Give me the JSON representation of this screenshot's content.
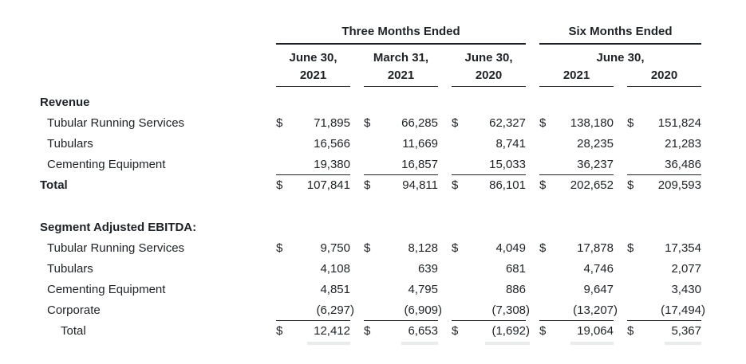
{
  "colors": {
    "background": "#ffffff",
    "text": "#1e2227",
    "rule": "#1e2227",
    "faint_total_rule": "#e9ebed"
  },
  "table": {
    "currency_symbol": "$",
    "header": {
      "groups": [
        {
          "title": "Three Months Ended",
          "columns": [
            {
              "date": "June 30,",
              "year": "2021"
            },
            {
              "date": "March 31,",
              "year": "2021"
            },
            {
              "date": "June 30,",
              "year": "2020"
            }
          ]
        },
        {
          "title": "Six Months Ended",
          "shared_date": "June 30,",
          "columns": [
            {
              "year": "2021"
            },
            {
              "year": "2020"
            }
          ]
        }
      ]
    },
    "sections": [
      {
        "heading": "Revenue",
        "rows": [
          {
            "label": "Tubular Running Services",
            "indent": 1,
            "bold": false,
            "dollar": true,
            "underline": false,
            "final": false,
            "values": [
              "71,895",
              "66,285",
              "62,327",
              "138,180",
              "151,824"
            ]
          },
          {
            "label": "Tubulars",
            "indent": 1,
            "bold": false,
            "dollar": false,
            "underline": false,
            "final": false,
            "values": [
              "16,566",
              "11,669",
              "8,741",
              "28,235",
              "21,283"
            ]
          },
          {
            "label": "Cementing Equipment",
            "indent": 1,
            "bold": false,
            "dollar": false,
            "underline": true,
            "final": false,
            "values": [
              "19,380",
              "16,857",
              "15,033",
              "36,237",
              "36,486"
            ]
          },
          {
            "label": "Total",
            "indent": 0,
            "bold": true,
            "dollar": true,
            "underline": false,
            "final": false,
            "values": [
              "107,841",
              "94,811",
              "86,101",
              "202,652",
              "209,593"
            ]
          }
        ]
      },
      {
        "heading": "Segment Adjusted EBITDA:",
        "rows": [
          {
            "label": "Tubular Running Services",
            "indent": 1,
            "bold": false,
            "dollar": true,
            "underline": false,
            "final": false,
            "values": [
              "9,750",
              "8,128",
              "4,049",
              "17,878",
              "17,354"
            ]
          },
          {
            "label": "Tubulars",
            "indent": 1,
            "bold": false,
            "dollar": false,
            "underline": false,
            "final": false,
            "values": [
              "4,108",
              "639",
              "681",
              "4,746",
              "2,077"
            ]
          },
          {
            "label": "Cementing Equipment",
            "indent": 1,
            "bold": false,
            "dollar": false,
            "underline": false,
            "final": false,
            "values": [
              "4,851",
              "4,795",
              "886",
              "9,647",
              "3,430"
            ]
          },
          {
            "label": "Corporate",
            "indent": 1,
            "bold": false,
            "dollar": false,
            "underline": true,
            "final": false,
            "values": [
              "(6,297)",
              "(6,909)",
              "(7,308)",
              "(13,207)",
              "(17,494)"
            ]
          },
          {
            "label": "Total",
            "indent": 2,
            "bold": false,
            "dollar": true,
            "underline": false,
            "final": true,
            "values": [
              "12,412",
              "6,653",
              "(1,692)",
              "19,064",
              "5,367"
            ]
          }
        ]
      }
    ]
  }
}
